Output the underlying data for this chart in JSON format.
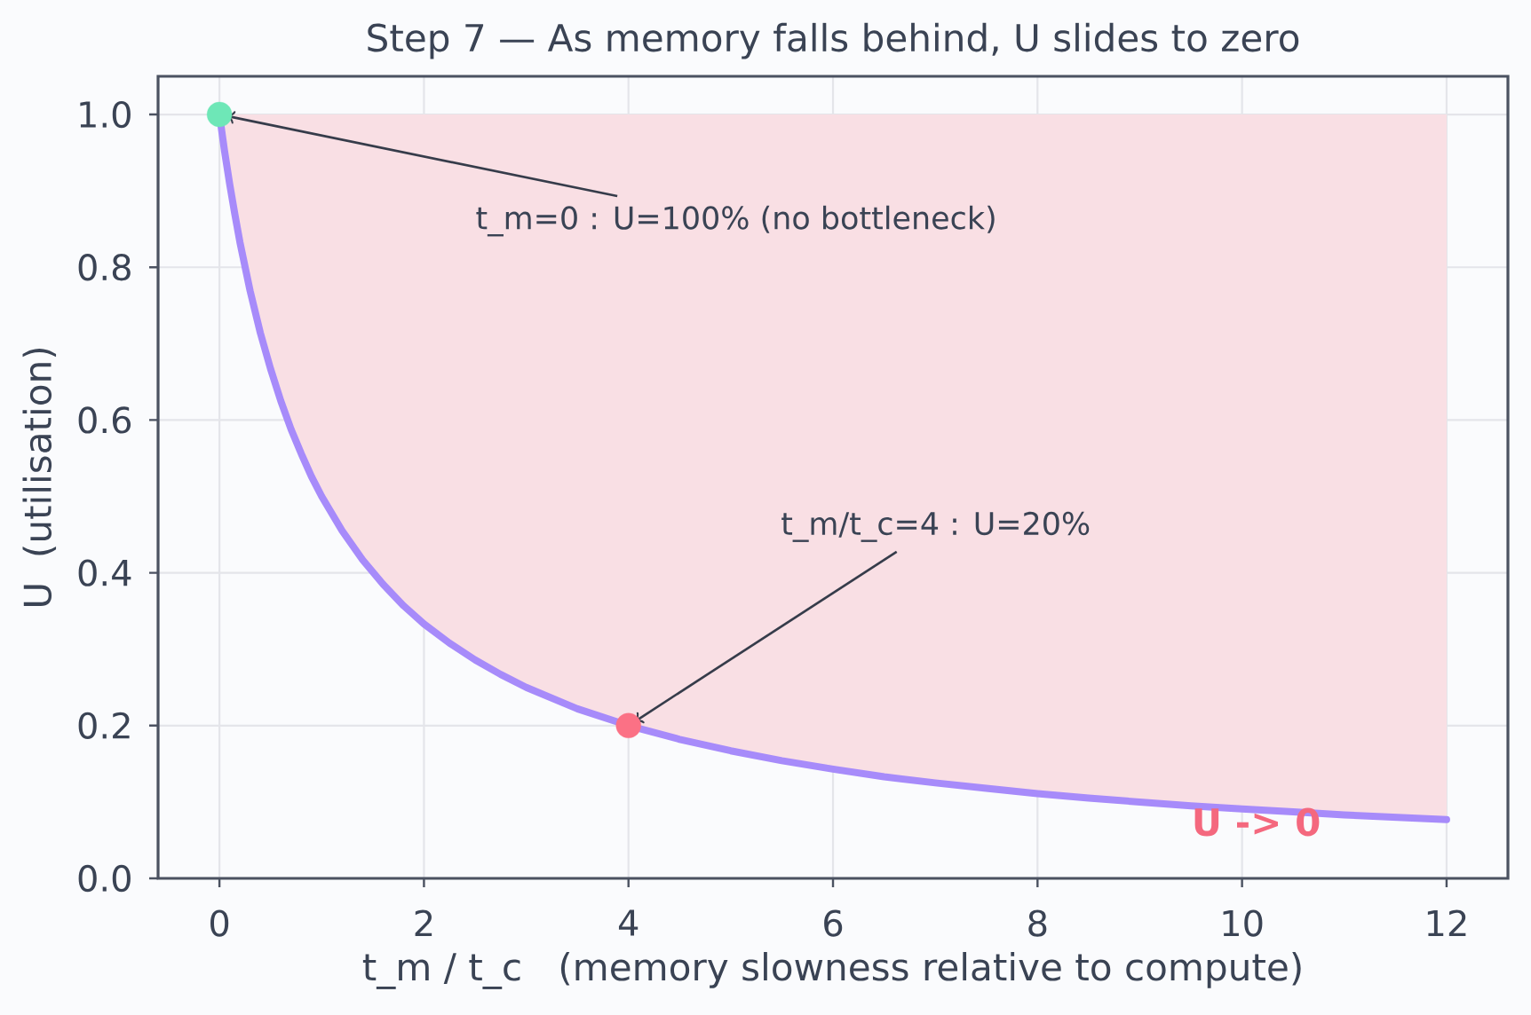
{
  "chart_data": {
    "type": "line",
    "title": "Step 7 — As memory falls behind, U slides to zero",
    "xlabel": "t_m / t_c   (memory slowness relative to compute)",
    "ylabel": "U  (utilisation)",
    "x": [
      0,
      0.05,
      0.1,
      0.15,
      0.2,
      0.3,
      0.4,
      0.5,
      0.6,
      0.7,
      0.8,
      0.9,
      1,
      1.2,
      1.4,
      1.6,
      1.8,
      2,
      2.25,
      2.5,
      2.75,
      3,
      3.5,
      4,
      4.5,
      5,
      5.5,
      6,
      6.5,
      7,
      7.5,
      8,
      8.5,
      9,
      9.5,
      10,
      10.5,
      11,
      11.5,
      12
    ],
    "series": [
      {
        "color": "#a78bfa",
        "values": [
          1.0,
          0.952,
          0.909,
          0.87,
          0.833,
          0.769,
          0.714,
          0.667,
          0.625,
          0.588,
          0.556,
          0.526,
          0.5,
          0.455,
          0.417,
          0.385,
          0.357,
          0.333,
          0.308,
          0.286,
          0.267,
          0.25,
          0.222,
          0.2,
          0.182,
          0.167,
          0.154,
          0.143,
          0.133,
          0.125,
          0.118,
          0.111,
          0.105,
          0.1,
          0.095,
          0.091,
          0.087,
          0.083,
          0.08,
          0.077
        ],
        "lower": [
          1.0,
          0.952,
          0.909,
          0.87,
          0.833,
          0.769,
          0.714,
          0.667,
          0.625,
          0.588,
          0.556,
          0.526,
          0.5,
          0.455,
          0.417,
          0.385,
          0.357,
          0.333,
          0.308,
          0.286,
          0.267,
          0.25,
          0.222,
          0.2,
          0.182,
          0.167,
          0.154,
          0.143,
          0.133,
          0.125,
          0.118,
          0.111,
          0.105,
          0.1,
          0.095,
          0.091,
          0.087,
          0.083,
          0.08,
          0.077
        ],
        "upper": [
          1,
          1,
          1,
          1,
          1,
          1,
          1,
          1,
          1,
          1,
          1,
          1,
          1,
          1,
          1,
          1,
          1,
          1,
          1,
          1,
          1,
          1,
          1,
          1,
          1,
          1,
          1,
          1,
          1,
          1,
          1,
          1,
          1,
          1,
          1,
          1,
          1,
          1,
          1,
          1
        ]
      },
      {
        "type": "scatter",
        "x": [
          0,
          4
        ],
        "values": [
          1.0,
          0.2
        ],
        "colors": [
          "#6ee7b7",
          "#fb7185"
        ],
        "marker": "circle"
      }
    ],
    "annotations": [
      {
        "text": "t_m=0 : U=100% (no bottleneck)",
        "x": 0,
        "y": 1.0
      },
      {
        "text": "t_m/t_c=4 : U=20%",
        "x": 4,
        "y": 0.2
      },
      {
        "text": "U -> 0",
        "x": 10,
        "y": 0.09
      }
    ],
    "xlim": [
      -0.6,
      12.6
    ],
    "ylim": [
      0,
      1.05
    ],
    "xticks": [
      0,
      2,
      4,
      6,
      8,
      10,
      12
    ],
    "yticks": [
      {
        "value": 0,
        "label": "0.0"
      },
      0.2,
      0.4,
      0.6,
      0.8,
      {
        "value": 1,
        "label": "1.0"
      }
    ],
    "grid": true
  }
}
